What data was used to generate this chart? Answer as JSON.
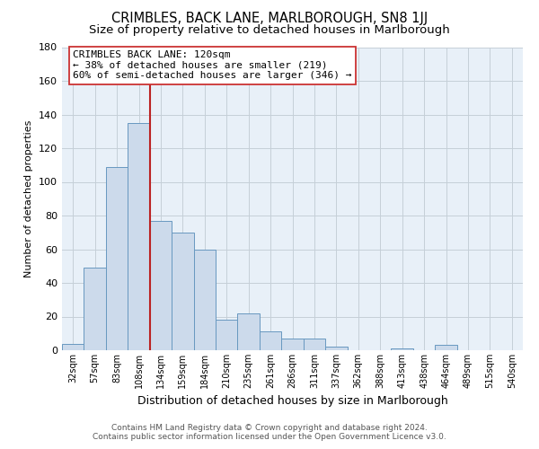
{
  "title": "CRIMBLES, BACK LANE, MARLBOROUGH, SN8 1JJ",
  "subtitle": "Size of property relative to detached houses in Marlborough",
  "xlabel": "Distribution of detached houses by size in Marlborough",
  "ylabel": "Number of detached properties",
  "bar_labels": [
    "32sqm",
    "57sqm",
    "83sqm",
    "108sqm",
    "134sqm",
    "159sqm",
    "184sqm",
    "210sqm",
    "235sqm",
    "261sqm",
    "286sqm",
    "311sqm",
    "337sqm",
    "362sqm",
    "388sqm",
    "413sqm",
    "438sqm",
    "464sqm",
    "489sqm",
    "515sqm",
    "540sqm"
  ],
  "bar_values": [
    4,
    49,
    109,
    135,
    77,
    70,
    60,
    18,
    22,
    11,
    7,
    7,
    2,
    0,
    0,
    1,
    0,
    3,
    0,
    0,
    0
  ],
  "bar_color": "#ccdaeb",
  "bar_edge_color": "#6898c0",
  "vline_color": "#bb2222",
  "annotation_title": "CRIMBLES BACK LANE: 120sqm",
  "annotation_line1": "← 38% of detached houses are smaller (219)",
  "annotation_line2": "60% of semi-detached houses are larger (346) →",
  "annotation_box_color": "#ffffff",
  "annotation_box_edge": "#cc3333",
  "ylim": [
    0,
    180
  ],
  "yticks": [
    0,
    20,
    40,
    60,
    80,
    100,
    120,
    140,
    160,
    180
  ],
  "footer_line1": "Contains HM Land Registry data © Crown copyright and database right 2024.",
  "footer_line2": "Contains public sector information licensed under the Open Government Licence v3.0.",
  "background_color": "#ffffff",
  "plot_bg_color": "#e8f0f8",
  "grid_color": "#c5cfd8",
  "title_fontsize": 10.5,
  "subtitle_fontsize": 9.5
}
